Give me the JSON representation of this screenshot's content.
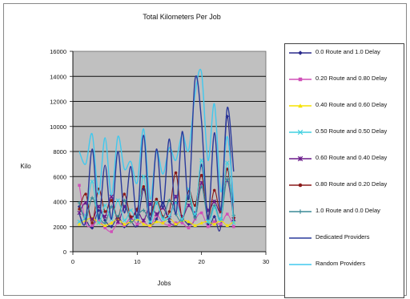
{
  "chart_data": {
    "type": "line",
    "title": "Total Kilometers Per Job",
    "xlabel": "Jobs",
    "ylabel": "Kilo",
    "xlim": [
      0,
      30
    ],
    "ylim": [
      0,
      16000
    ],
    "x_ticks": [
      0,
      10,
      20,
      30
    ],
    "y_ticks": [
      0,
      2000,
      4000,
      6000,
      8000,
      10000,
      12000,
      14000,
      16000
    ],
    "x_tick_labels": [
      "0",
      "10",
      "20",
      "30"
    ],
    "y_tick_labels": [
      "0",
      "2000",
      "4000",
      "6000",
      "8000",
      "10000",
      "12000",
      "14000",
      "16000"
    ],
    "grid": "horizontal",
    "legend_position": "right",
    "x": [
      1,
      2,
      3,
      4,
      5,
      6,
      7,
      8,
      9,
      10,
      11,
      12,
      13,
      14,
      15,
      16,
      17,
      18,
      19,
      20,
      21,
      22,
      23,
      24,
      25
    ],
    "series": [
      {
        "name": "0.0 Route and 1.0 Delay",
        "color": "#2b2b8c",
        "marker": "diamond",
        "values": [
          3600,
          2600,
          1900,
          3300,
          2500,
          2000,
          2800,
          2000,
          2400,
          2100,
          5000,
          2300,
          2600,
          3900,
          2400,
          2100,
          2600,
          2200,
          2800,
          6900,
          2200,
          2800,
          2100,
          10800,
          2500
        ]
      },
      {
        "name": "0.20 Route and 0.80 Delay",
        "color": "#d050b8",
        "marker": "square",
        "values": [
          5300,
          2300,
          2100,
          2500,
          1900,
          1600,
          2300,
          2100,
          2700,
          2200,
          2400,
          2000,
          2900,
          2300,
          2100,
          2300,
          2300,
          1900,
          2600,
          3100,
          2000,
          2400,
          2200,
          3000,
          2000
        ]
      },
      {
        "name": "0.40 Route and 0.60 Delay",
        "color": "#f5e200",
        "marker": "triangle",
        "values": [
          2200,
          2500,
          2700,
          2300,
          2100,
          2300,
          2600,
          2200,
          2400,
          2600,
          2200,
          2100,
          2400,
          2300,
          2700,
          2200,
          2500,
          2400,
          2100,
          2300,
          2400,
          2200,
          2500,
          2100,
          2400
        ]
      },
      {
        "name": "0.50 Route and 0.50 Delay",
        "color": "#40d0e0",
        "marker": "x",
        "values": [
          2400,
          2900,
          5600,
          2300,
          3700,
          2600,
          4100,
          2500,
          3300,
          2700,
          6000,
          2400,
          3900,
          2600,
          2800,
          3900,
          2600,
          5000,
          3000,
          7300,
          2400,
          3500,
          2600,
          7100,
          2300
        ]
      },
      {
        "name": "0.60 Route and 0.40 Delay",
        "color": "#6a1a8a",
        "marker": "star",
        "values": [
          3100,
          3900,
          2600,
          3600,
          2800,
          4400,
          2400,
          3600,
          2700,
          3300,
          2500,
          3800,
          3000,
          3500,
          2700,
          4400,
          2800,
          3700,
          3100,
          5500,
          3300,
          4000,
          3200,
          5700,
          2600
        ]
      },
      {
        "name": "0.80 Route and 0.20 Delay",
        "color": "#8a1a1a",
        "marker": "circle",
        "values": [
          3400,
          4600,
          2300,
          5000,
          3200,
          4100,
          2700,
          4600,
          2800,
          3400,
          5200,
          3000,
          4200,
          2800,
          3200,
          6300,
          2600,
          4900,
          3700,
          6100,
          2800,
          4900,
          3200,
          6600,
          2700
        ]
      },
      {
        "name": "1.0 Route and 0.0 Delay",
        "color": "#3a8a96",
        "marker": "plus",
        "values": [
          3900,
          2600,
          4300,
          2900,
          2300,
          3600,
          2800,
          4100,
          2400,
          2900,
          3300,
          2600,
          3900,
          2700,
          4100,
          3000,
          2500,
          4400,
          2700,
          5200,
          2600,
          3700,
          2600,
          5800,
          2900
        ]
      },
      {
        "name": "Dedicated Providers",
        "color": "#2a3a9c",
        "marker": "none",
        "values": [
          3000,
          2400,
          8200,
          2600,
          6900,
          2600,
          8000,
          3100,
          6800,
          2700,
          9300,
          2500,
          8200,
          3500,
          9000,
          3000,
          9600,
          4200,
          13800,
          10400,
          2600,
          9500,
          3300,
          11500,
          6400
        ]
      },
      {
        "name": "Random Providers",
        "color": "#40c8ee",
        "marker": "none",
        "values": [
          8000,
          7000,
          9400,
          4600,
          9100,
          4500,
          9200,
          6600,
          7200,
          5500,
          9800,
          4200,
          8000,
          6200,
          8300,
          7300,
          9400,
          8100,
          12600,
          14300,
          7300,
          11800,
          4800,
          9200,
          3900
        ]
      }
    ]
  }
}
